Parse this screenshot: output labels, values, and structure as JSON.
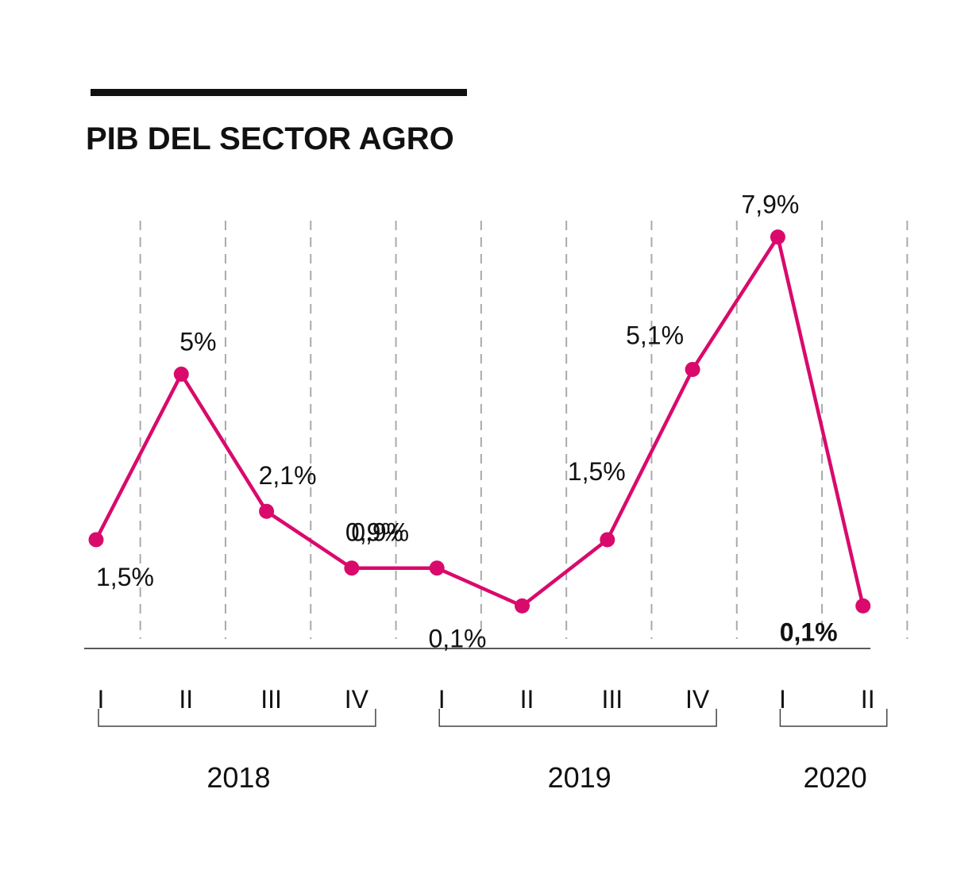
{
  "chart_data": {
    "type": "line",
    "title": "PIB DEL SECTOR AGRO",
    "xlabel": "",
    "ylabel": "",
    "categories": [
      "I",
      "II",
      "III",
      "IV",
      "I",
      "II",
      "III",
      "IV",
      "I",
      "II"
    ],
    "year_groups": [
      {
        "label": "2018",
        "from": 0,
        "to": 3
      },
      {
        "label": "2019",
        "from": 4,
        "to": 7
      },
      {
        "label": "2020",
        "from": 8,
        "to": 9
      }
    ],
    "series": [
      {
        "name": "PIB del sector agro",
        "values": [
          1.5,
          5.0,
          2.1,
          0.9,
          0.9,
          0.1,
          1.5,
          5.1,
          7.9,
          0.1
        ],
        "labels": [
          "1,5%",
          "5%",
          "2,1%",
          "0,9%",
          "0,9%",
          "0,1%",
          "1,5%",
          "5,1%",
          "7,9%",
          "0,1%"
        ],
        "highlight_last": true
      }
    ],
    "ylim": [
      -0.8,
      8.8
    ],
    "grid": "vertical-dashed",
    "legend": "none",
    "colors": {
      "line": "#d90a6c",
      "text": "#111111",
      "grid": "#aaaaaa"
    }
  }
}
